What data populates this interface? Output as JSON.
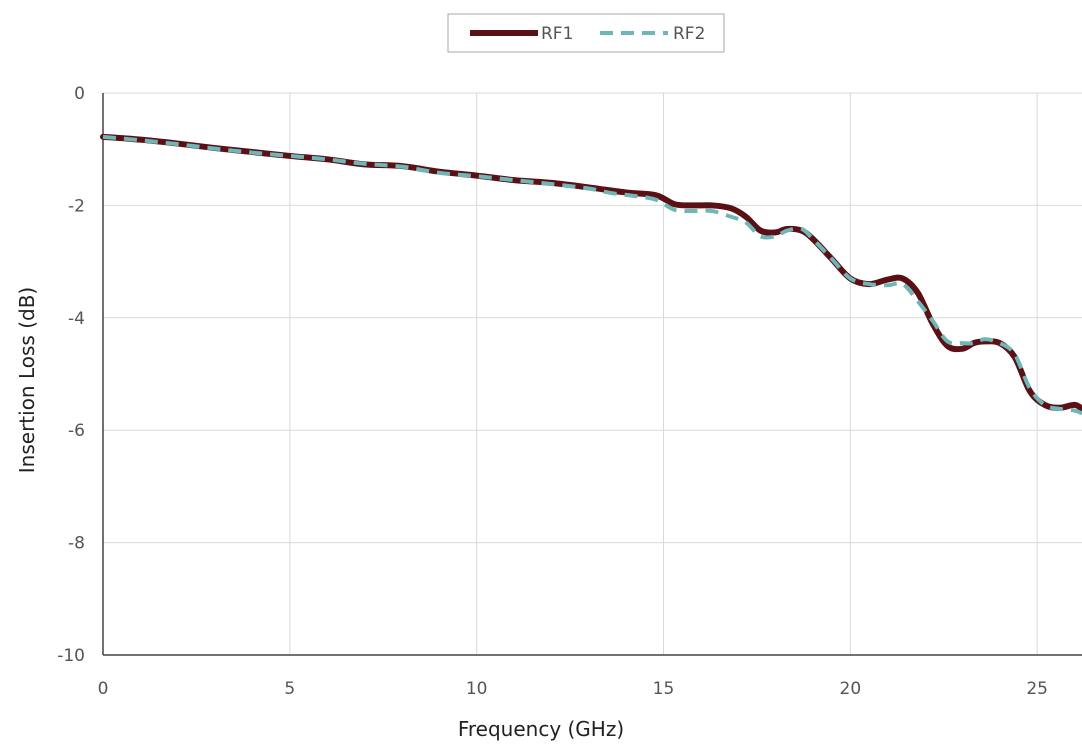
{
  "chart_data": {
    "type": "line",
    "title": "",
    "xlabel": "Frequency (GHz)",
    "ylabel": "Insertion Loss (dB)",
    "xlim": [
      0,
      26.2
    ],
    "ylim": [
      -10,
      0
    ],
    "xticks": [
      0,
      5,
      10,
      15,
      20,
      25
    ],
    "yticks": [
      0,
      -2,
      -4,
      -6,
      -8,
      -10
    ],
    "grid": true,
    "legend": "top-center",
    "series": [
      {
        "name": "RF1",
        "color": "#5a1014",
        "style": "solid",
        "x": [
          0,
          1,
          2,
          3,
          4,
          5,
          6,
          7,
          8,
          9,
          10,
          11,
          12,
          13,
          14,
          14.8,
          15.3,
          15.8,
          16.3,
          16.8,
          17.2,
          17.6,
          18,
          18.3,
          18.7,
          19,
          19.5,
          20,
          20.5,
          21,
          21.4,
          21.8,
          22.2,
          22.6,
          23,
          23.3,
          23.6,
          24,
          24.4,
          24.8,
          25.2,
          25.6,
          26,
          26.2
        ],
        "y": [
          -0.78,
          -0.83,
          -0.9,
          -0.98,
          -1.05,
          -1.12,
          -1.18,
          -1.27,
          -1.3,
          -1.4,
          -1.47,
          -1.55,
          -1.6,
          -1.68,
          -1.77,
          -1.82,
          -1.98,
          -2.0,
          -2.0,
          -2.05,
          -2.2,
          -2.45,
          -2.48,
          -2.42,
          -2.45,
          -2.6,
          -2.95,
          -3.3,
          -3.4,
          -3.32,
          -3.3,
          -3.55,
          -4.1,
          -4.5,
          -4.55,
          -4.45,
          -4.42,
          -4.45,
          -4.7,
          -5.3,
          -5.55,
          -5.6,
          -5.55,
          -5.62
        ]
      },
      {
        "name": "RF2",
        "color": "#6fb6b8",
        "style": "dashed",
        "x": [
          0,
          1,
          2,
          3,
          4,
          5,
          6,
          7,
          8,
          9,
          10,
          11,
          12,
          13,
          13.6,
          14.2,
          14.8,
          15.3,
          15.8,
          16.3,
          16.8,
          17.2,
          17.6,
          18,
          18.3,
          18.7,
          19,
          19.5,
          20,
          20.5,
          21,
          21.4,
          21.8,
          22.2,
          22.6,
          23,
          23.3,
          23.6,
          24,
          24.4,
          24.8,
          25.2,
          25.6,
          26,
          26.2
        ],
        "y": [
          -0.78,
          -0.84,
          -0.91,
          -0.99,
          -1.06,
          -1.12,
          -1.18,
          -1.26,
          -1.31,
          -1.42,
          -1.48,
          -1.55,
          -1.62,
          -1.7,
          -1.78,
          -1.83,
          -1.9,
          -2.08,
          -2.1,
          -2.1,
          -2.2,
          -2.3,
          -2.55,
          -2.55,
          -2.45,
          -2.42,
          -2.6,
          -2.95,
          -3.3,
          -3.4,
          -3.42,
          -3.4,
          -3.7,
          -4.05,
          -4.42,
          -4.45,
          -4.45,
          -4.38,
          -4.45,
          -4.65,
          -5.25,
          -5.55,
          -5.62,
          -5.65,
          -5.7
        ]
      }
    ]
  }
}
